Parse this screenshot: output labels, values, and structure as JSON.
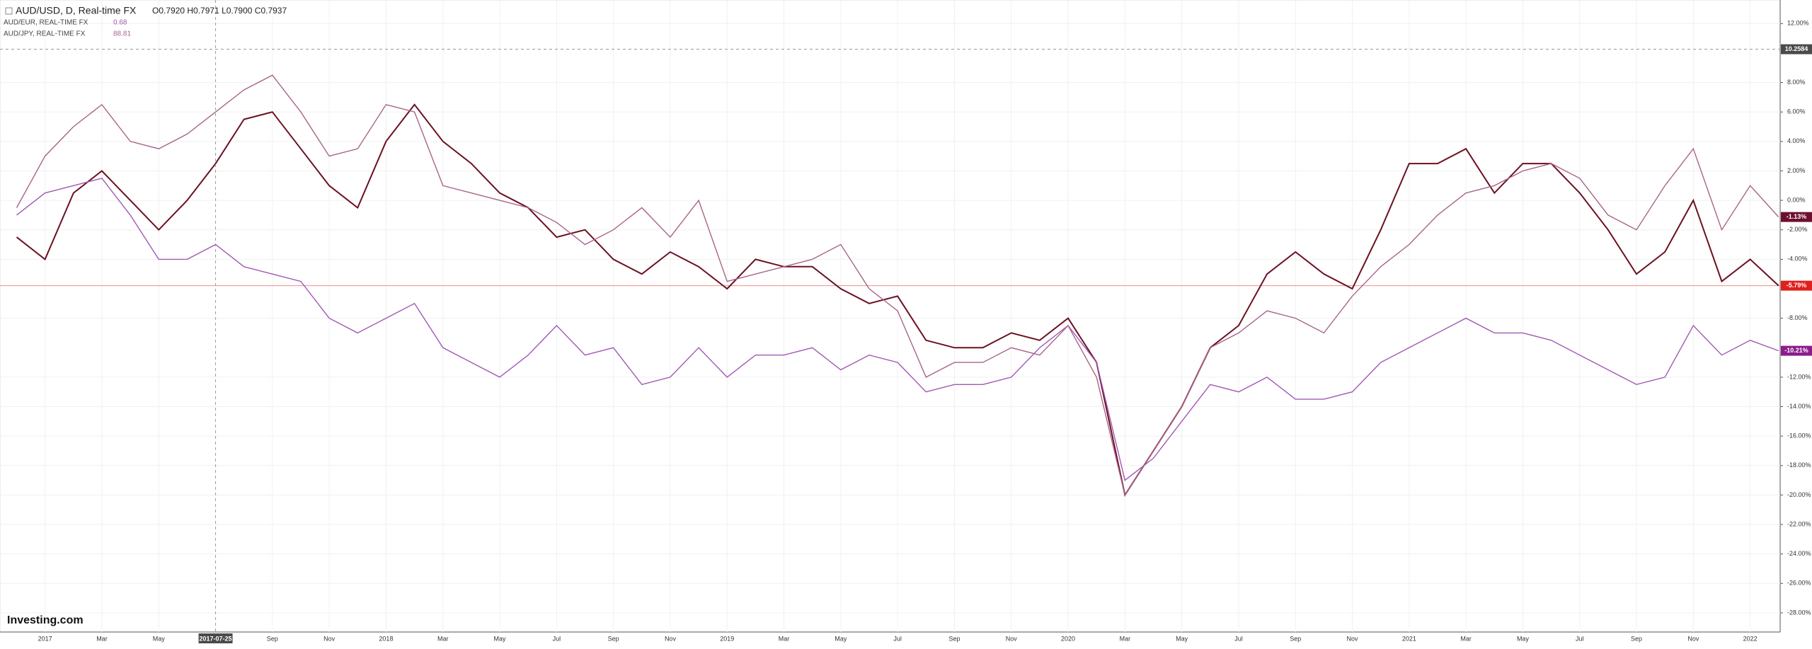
{
  "chart_data": {
    "type": "line",
    "header": {
      "quote": "O0.7920 H0.7971 L0.7900 C0.7937",
      "logo": "Investing.com"
    },
    "categories": [
      null,
      "2017",
      null,
      "Mar",
      null,
      "May",
      null,
      null,
      null,
      "Sep",
      null,
      "Nov",
      null,
      "2018",
      null,
      "Mar",
      null,
      "May",
      null,
      "Jul",
      null,
      "Sep",
      null,
      "Nov",
      null,
      "2019",
      null,
      "Mar",
      null,
      "May",
      null,
      "Jul",
      null,
      "Sep",
      null,
      "Nov",
      null,
      "2020",
      null,
      "Mar",
      null,
      "May",
      null,
      "Jul",
      null,
      "Sep",
      null,
      "Nov",
      null,
      "2021",
      null,
      "Mar",
      null,
      "May",
      null,
      "Jul",
      null,
      "Sep",
      null,
      "Nov",
      null,
      "2022",
      null
    ],
    "series": [
      {
        "name": "AUD/USD, D, Real-time FX",
        "color": "#6b1020",
        "label_color": "#e0201e",
        "last_label": "-5.79%",
        "price_line": true,
        "values": [
          -2.5,
          -4.0,
          0.5,
          2.0,
          0.0,
          -2.0,
          0.0,
          2.5,
          5.5,
          6.0,
          3.5,
          1.0,
          -0.5,
          4.0,
          6.5,
          4.0,
          2.5,
          0.5,
          -0.5,
          -2.5,
          -2.0,
          -4.0,
          -5.0,
          -3.5,
          -4.5,
          -6.0,
          -4.0,
          -4.5,
          -4.5,
          -6.0,
          -7.0,
          -6.5,
          -9.5,
          -10.0,
          -10.0,
          -9.0,
          -9.5,
          -8.0,
          -11.0,
          -20.0,
          -17.0,
          -14.0,
          -10.0,
          -8.5,
          -5.0,
          -3.5,
          -5.0,
          -6.0,
          -2.0,
          2.5,
          2.5,
          3.5,
          0.5,
          2.5,
          2.5,
          0.5,
          -2.0,
          -5.0,
          -3.5,
          0.0,
          -5.5,
          -4.0,
          -5.79
        ]
      },
      {
        "name": "AUD/EUR, REAL-TIME FX",
        "quote": "0.68",
        "color": "#a259b5",
        "label_color": "#8b1d8b",
        "last_label": "-10.21%",
        "price_line": false,
        "values": [
          -1.0,
          0.5,
          1.0,
          1.5,
          -1.0,
          -4.0,
          -4.0,
          -3.0,
          -4.5,
          -5.0,
          -5.5,
          -8.0,
          -9.0,
          -8.0,
          -7.0,
          -10.0,
          -11.0,
          -12.0,
          -10.5,
          -8.5,
          -10.5,
          -10.0,
          -12.5,
          -12.0,
          -10.0,
          -12.0,
          -10.5,
          -10.5,
          -10.0,
          -11.5,
          -10.5,
          -11.0,
          -13.0,
          -12.5,
          -12.5,
          -12.0,
          -10.0,
          -8.5,
          -11.0,
          -19.0,
          -17.5,
          -15.0,
          -12.5,
          -13.0,
          -12.0,
          -13.5,
          -13.5,
          -13.0,
          -11.0,
          -10.0,
          -9.0,
          -8.0,
          -9.0,
          -9.0,
          -9.5,
          -10.5,
          -11.5,
          -12.5,
          -12.0,
          -8.5,
          -10.5,
          -9.5,
          -10.21
        ]
      },
      {
        "name": "AUD/JPY, REAL-TIME FX",
        "quote": "88.81",
        "color": "#a8648a",
        "label_color": "#6d1030",
        "last_label": "-1.13%",
        "price_line": false,
        "values": [
          -0.5,
          3.0,
          5.0,
          6.5,
          4.0,
          3.5,
          4.5,
          6.0,
          7.5,
          8.5,
          6.0,
          3.0,
          3.5,
          6.5,
          6.0,
          1.0,
          0.5,
          0.0,
          -0.5,
          -1.5,
          -3.0,
          -2.0,
          -0.5,
          -2.5,
          0.0,
          -5.5,
          -5.0,
          -4.5,
          -4.0,
          -3.0,
          -6.0,
          -7.5,
          -12.0,
          -11.0,
          -11.0,
          -10.0,
          -10.5,
          -8.5,
          -12.0,
          -20.0,
          -17.0,
          -14.0,
          -10.0,
          -9.0,
          -7.5,
          -8.0,
          -9.0,
          -6.5,
          -4.5,
          -3.0,
          -1.0,
          0.5,
          1.0,
          2.0,
          2.5,
          1.5,
          -1.0,
          -2.0,
          1.0,
          3.5,
          -2.0,
          1.0,
          -1.13
        ]
      }
    ],
    "ylim": [
      -29.3,
      13.6
    ],
    "yticks": [
      {
        "value": 12,
        "label": "12.00%"
      },
      {
        "value": 8,
        "label": "8.00%"
      },
      {
        "value": 6,
        "label": "6.00%"
      },
      {
        "value": 4,
        "label": "4.00%"
      },
      {
        "value": 2,
        "label": "2.00%"
      },
      {
        "value": 0,
        "label": "0.00%"
      },
      {
        "value": -2,
        "label": "-2.00%"
      },
      {
        "value": -4,
        "label": "-4.00%"
      },
      {
        "value": -8,
        "label": "-8.00%"
      },
      {
        "value": -12,
        "label": "-12.00%"
      },
      {
        "value": -14,
        "label": "-14.00%"
      },
      {
        "value": -16,
        "label": "-16.00%"
      },
      {
        "value": -18,
        "label": "-18.00%"
      },
      {
        "value": -20,
        "label": "-20.00%"
      },
      {
        "value": -22,
        "label": "-22.00%"
      },
      {
        "value": -24,
        "label": "-24.00%"
      },
      {
        "value": -26,
        "label": "-26.00%"
      },
      {
        "value": -28,
        "label": "-28.00%"
      }
    ],
    "grid": true,
    "crosshair": {
      "x_index": 7,
      "x_label": "2017-07-25",
      "y": 10.2584
    }
  }
}
